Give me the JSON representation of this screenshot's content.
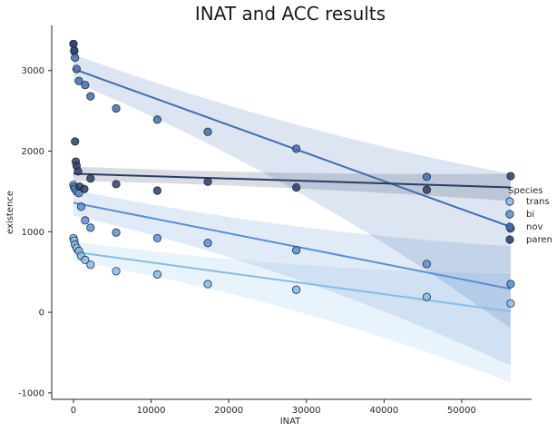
{
  "chart_data": {
    "type": "scatter",
    "title": "INAT and ACC results",
    "xlabel": "INAT",
    "ylabel": "existence",
    "xlim": [
      -2800,
      59000
    ],
    "ylim": [
      -1080,
      3560
    ],
    "xticks": [
      0,
      10000,
      20000,
      30000,
      40000,
      50000
    ],
    "yticks": [
      -1000,
      0,
      1000,
      2000,
      3000
    ],
    "grid": false,
    "legend": {
      "title": "Species",
      "placement": "right"
    },
    "series": [
      {
        "name": "trans",
        "color": "#85bce8",
        "points": [
          [
            0,
            920
          ],
          [
            100,
            890
          ],
          [
            200,
            840
          ],
          [
            400,
            800
          ],
          [
            700,
            760
          ],
          [
            1000,
            700
          ],
          [
            1500,
            650
          ],
          [
            2200,
            590
          ],
          [
            5500,
            510
          ],
          [
            10800,
            470
          ],
          [
            17300,
            350
          ],
          [
            28700,
            280
          ],
          [
            45500,
            190
          ],
          [
            56300,
            110
          ]
        ],
        "fit": {
          "x": [
            0,
            56300
          ],
          "y": [
            750,
            10
          ]
        },
        "band": {
          "upper_start": 880,
          "upper_end": 480,
          "lower_start": 640,
          "lower_end": -870
        }
      },
      {
        "name": "bi",
        "color": "#5a8fd4",
        "points": [
          [
            0,
            1580
          ],
          [
            100,
            1550
          ],
          [
            200,
            1530
          ],
          [
            400,
            1500
          ],
          [
            700,
            1480
          ],
          [
            1000,
            1310
          ],
          [
            1500,
            1140
          ],
          [
            2200,
            1050
          ],
          [
            5500,
            990
          ],
          [
            10800,
            920
          ],
          [
            17300,
            860
          ],
          [
            28700,
            770
          ],
          [
            45500,
            600
          ],
          [
            56300,
            350
          ]
        ],
        "fit": {
          "x": [
            0,
            56300
          ],
          "y": [
            1360,
            290
          ]
        },
        "band": {
          "upper_start": 1520,
          "upper_end": 820,
          "lower_start": 1200,
          "lower_end": -660
        }
      },
      {
        "name": "nov",
        "color": "#3f6fb1",
        "points": [
          [
            0,
            3330
          ],
          [
            100,
            3240
          ],
          [
            200,
            3160
          ],
          [
            400,
            3020
          ],
          [
            700,
            2870
          ],
          [
            1500,
            2820
          ],
          [
            2200,
            2680
          ],
          [
            5500,
            2530
          ],
          [
            10800,
            2390
          ],
          [
            17300,
            2240
          ],
          [
            28700,
            2030
          ],
          [
            45500,
            1680
          ],
          [
            56300,
            1040
          ]
        ],
        "fit": {
          "x": [
            0,
            56300
          ],
          "y": [
            3020,
            1060
          ]
        },
        "band": {
          "upper_start": 3200,
          "upper_end": 1720,
          "lower_start": 2860,
          "lower_end": -200
        }
      },
      {
        "name": "paren",
        "color": "#2a3d66",
        "points": [
          [
            0,
            3330
          ],
          [
            100,
            3250
          ],
          [
            200,
            2120
          ],
          [
            300,
            1870
          ],
          [
            400,
            1820
          ],
          [
            600,
            1750
          ],
          [
            800,
            1560
          ],
          [
            1400,
            1530
          ],
          [
            2200,
            1660
          ],
          [
            5500,
            1590
          ],
          [
            10800,
            1510
          ],
          [
            17300,
            1620
          ],
          [
            28700,
            1550
          ],
          [
            45500,
            1520
          ],
          [
            56300,
            1690
          ]
        ],
        "fit": {
          "x": [
            0,
            56300
          ],
          "y": [
            1720,
            1550
          ]
        },
        "band": {
          "upper_start": 1810,
          "upper_end": 1720,
          "lower_start": 1630,
          "lower_end": 1380
        }
      }
    ]
  }
}
